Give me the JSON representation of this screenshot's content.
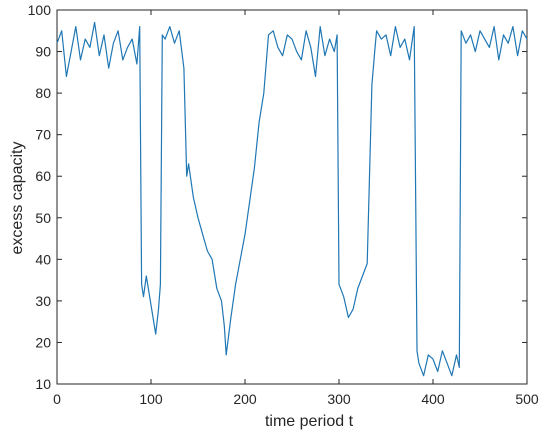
{
  "chart_data": {
    "type": "line",
    "title": "",
    "xlabel": "time period t",
    "ylabel": "excess capacity",
    "xlim": [
      0,
      500
    ],
    "ylim": [
      10,
      100
    ],
    "xticks": [
      0,
      100,
      200,
      300,
      400,
      500
    ],
    "yticks": [
      10,
      20,
      30,
      40,
      50,
      60,
      70,
      80,
      90,
      100
    ],
    "grid": false,
    "series_color": "#1F77B4",
    "series": [
      {
        "x": [
          0,
          5,
          10,
          15,
          20,
          25,
          30,
          35,
          40,
          45,
          50,
          55,
          60,
          65,
          70,
          75,
          80,
          85,
          88,
          90,
          92,
          95,
          100,
          105,
          108,
          110,
          112,
          115,
          120,
          125,
          130,
          135,
          138,
          140,
          145,
          150,
          155,
          160,
          165,
          170,
          175,
          178,
          180,
          185,
          190,
          195,
          200,
          205,
          210,
          215,
          220,
          225,
          230,
          235,
          240,
          245,
          250,
          255,
          260,
          265,
          270,
          275,
          280,
          285,
          290,
          295,
          298,
          300,
          305,
          310,
          315,
          320,
          325,
          330,
          335,
          338,
          340,
          345,
          350,
          355,
          360,
          365,
          370,
          375,
          380,
          383,
          385,
          390,
          395,
          400,
          405,
          410,
          415,
          420,
          425,
          428,
          430,
          435,
          440,
          445,
          450,
          455,
          460,
          465,
          470,
          475,
          480,
          485,
          490,
          495,
          500
        ],
        "values": [
          92,
          95,
          84,
          90,
          96,
          88,
          93,
          91,
          97,
          89,
          94,
          86,
          92,
          95,
          88,
          91,
          93,
          87,
          96,
          34,
          31,
          36,
          29,
          22,
          28,
          34,
          94,
          93,
          96,
          92,
          95,
          86,
          60,
          63,
          55,
          50,
          46,
          42,
          40,
          33,
          30,
          24,
          17,
          26,
          34,
          40,
          46,
          54,
          62,
          73,
          80,
          94,
          95,
          91,
          89,
          94,
          93,
          90,
          88,
          95,
          91,
          84,
          96,
          89,
          93,
          90,
          94,
          34,
          31,
          26,
          28,
          33,
          36,
          39,
          82,
          90,
          95,
          93,
          94,
          89,
          96,
          91,
          93,
          88,
          96,
          18,
          15,
          12,
          17,
          16,
          13,
          18,
          15,
          12,
          17,
          14,
          95,
          92,
          94,
          90,
          95,
          93,
          91,
          96,
          88,
          94,
          92,
          96,
          89,
          95,
          93
        ]
      }
    ]
  }
}
